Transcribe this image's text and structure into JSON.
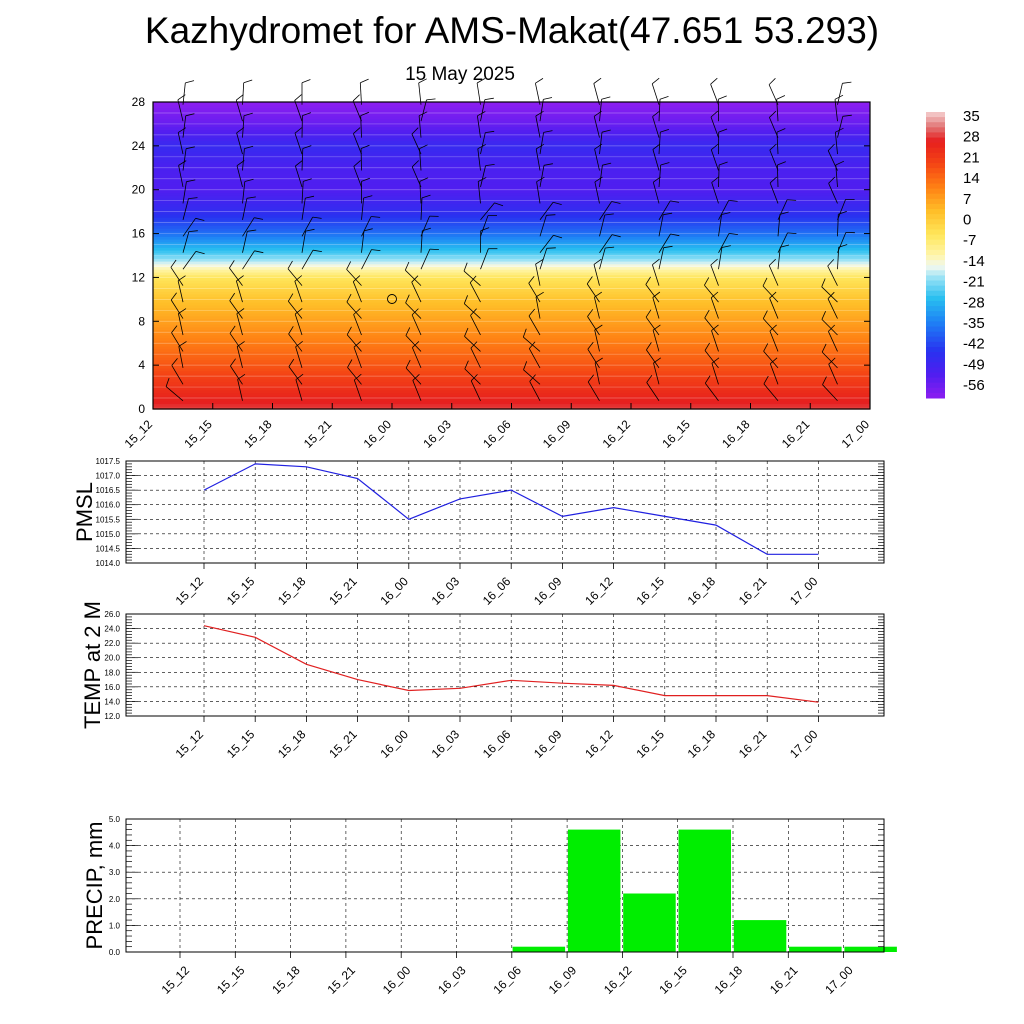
{
  "title": "Kazhydromet for AMS-Makat(47.651 53.293)",
  "date": "15 May 2025",
  "chart_data": [
    {
      "type": "heatmap",
      "description": "vertical cross-section, temperature contours with wind barbs",
      "x_ticks": [
        "15_12",
        "15_15",
        "15_18",
        "15_21",
        "16_00",
        "16_03",
        "16_06",
        "16_09",
        "16_12",
        "16_15",
        "16_18",
        "16_21",
        "17_00"
      ],
      "y_ticks": [
        "0",
        "4",
        "8",
        "12",
        "16",
        "20",
        "24",
        "28"
      ],
      "ylim": [
        0,
        28
      ],
      "colorbar_labels": [
        "35",
        "28",
        "21",
        "14",
        "7",
        "0",
        "-7",
        "-14",
        "-21",
        "-28",
        "-35",
        "-42",
        "-49",
        "-56"
      ],
      "colorbar_range": [
        -60,
        38
      ],
      "temperature_by_level": {
        "levels": [
          0,
          2,
          4,
          6,
          8,
          10,
          12,
          13,
          14,
          16,
          18,
          20,
          22,
          24,
          26,
          28
        ],
        "values": [
          30,
          24,
          18,
          13,
          8,
          3,
          -4,
          -13,
          -22,
          -36,
          -46,
          -52,
          -51,
          -47,
          -55,
          -60
        ]
      },
      "colors": {
        "warm": "#e8241c",
        "neutral": "#fff0a0",
        "cold": "#2030ee",
        "coldest": "#8a24f0"
      }
    },
    {
      "type": "line",
      "ylabel": "PMSL",
      "x": [
        "15_12",
        "15_15",
        "15_18",
        "15_21",
        "16_00",
        "16_03",
        "16_06",
        "16_09",
        "16_12",
        "16_15",
        "16_18",
        "16_21",
        "17_00"
      ],
      "series": [
        {
          "values": [
            1016.5,
            1017.4,
            1017.3,
            1016.9,
            1015.5,
            1016.2,
            1016.5,
            1015.6,
            1015.9,
            1015.6,
            1015.3,
            1014.3,
            1014.3
          ]
        }
      ],
      "ylim": [
        1014.0,
        1017.5
      ],
      "y_ticks": [
        "1014.0",
        "1014.5",
        "1015.0",
        "1015.5",
        "1016.0",
        "1016.5",
        "1017.0",
        "1017.5"
      ],
      "color": "#2020e0",
      "grid": true
    },
    {
      "type": "line",
      "ylabel": "TEMP at 2 M",
      "x": [
        "15_12",
        "15_15",
        "15_18",
        "15_21",
        "16_00",
        "16_03",
        "16_06",
        "16_09",
        "16_12",
        "16_15",
        "16_18",
        "16_21",
        "17_00"
      ],
      "series": [
        {
          "values": [
            24.4,
            22.8,
            19.1,
            17.0,
            15.5,
            15.8,
            16.9,
            16.5,
            16.2,
            14.8,
            14.8,
            14.8,
            13.9
          ]
        }
      ],
      "ylim": [
        12.0,
        26.0
      ],
      "y_ticks": [
        "12.0",
        "14.0",
        "16.0",
        "18.0",
        "20.0",
        "22.0",
        "24.0",
        "26.0"
      ],
      "color": "#e02020",
      "grid": true
    },
    {
      "type": "bar",
      "ylabel": "PRECIP, mm",
      "categories": [
        "15_12",
        "15_15",
        "15_18",
        "15_21",
        "16_00",
        "16_03",
        "16_06",
        "16_09",
        "16_12",
        "16_15",
        "16_18",
        "16_21",
        "17_00"
      ],
      "values": [
        0.0,
        0.0,
        0.0,
        0.0,
        0.0,
        0.0,
        0.2,
        4.6,
        2.2,
        4.6,
        1.2,
        0.2,
        0.2
      ],
      "ylim": [
        0.0,
        5.0
      ],
      "y_ticks": [
        "0.0",
        "1.0",
        "2.0",
        "3.0",
        "4.0",
        "5.0"
      ],
      "color": "#00ee00",
      "grid": true
    }
  ]
}
